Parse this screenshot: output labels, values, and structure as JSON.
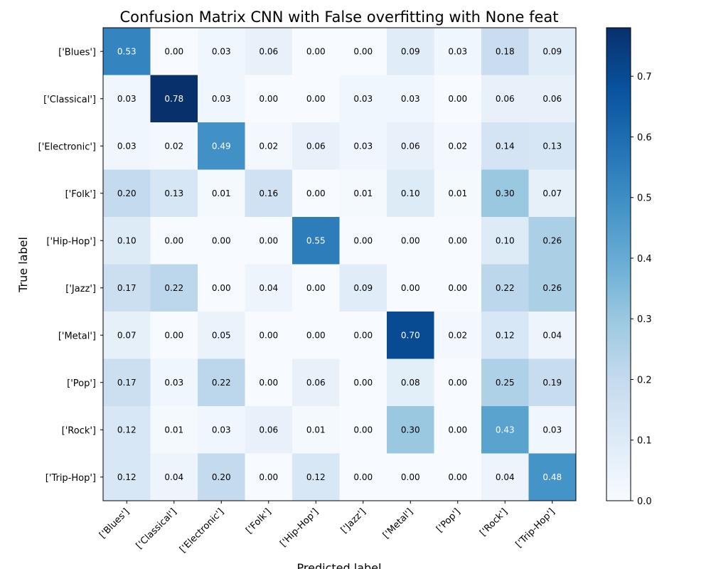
{
  "chart_data": {
    "type": "heatmap",
    "title": "Confusion Matrix CNN with False overfitting with None feat",
    "xlabel": "Predicted label",
    "ylabel": "True label",
    "x_labels": [
      "['Blues']",
      "['Classical']",
      "['Electronic']",
      "['Folk']",
      "['Hip-Hop']",
      "['Jazz']",
      "['Metal']",
      "['Pop']",
      "['Rock']",
      "['Trip-Hop']"
    ],
    "y_labels": [
      "['Blues']",
      "['Classical']",
      "['Electronic']",
      "['Folk']",
      "['Hip-Hop']",
      "['Jazz']",
      "['Metal']",
      "['Pop']",
      "['Rock']",
      "['Trip-Hop']"
    ],
    "values": [
      [
        0.53,
        0.0,
        0.03,
        0.06,
        0.0,
        0.0,
        0.09,
        0.03,
        0.18,
        0.09
      ],
      [
        0.03,
        0.78,
        0.03,
        0.0,
        0.0,
        0.03,
        0.03,
        0.0,
        0.06,
        0.06
      ],
      [
        0.03,
        0.02,
        0.49,
        0.02,
        0.06,
        0.03,
        0.06,
        0.02,
        0.14,
        0.13
      ],
      [
        0.2,
        0.13,
        0.01,
        0.16,
        0.0,
        0.01,
        0.1,
        0.01,
        0.3,
        0.07
      ],
      [
        0.1,
        0.0,
        0.0,
        0.0,
        0.55,
        0.0,
        0.0,
        0.0,
        0.1,
        0.26
      ],
      [
        0.17,
        0.22,
        0.0,
        0.04,
        0.0,
        0.09,
        0.0,
        0.0,
        0.22,
        0.26
      ],
      [
        0.07,
        0.0,
        0.05,
        0.0,
        0.0,
        0.0,
        0.7,
        0.02,
        0.12,
        0.04
      ],
      [
        0.17,
        0.03,
        0.22,
        0.0,
        0.06,
        0.0,
        0.08,
        0.0,
        0.25,
        0.19
      ],
      [
        0.12,
        0.01,
        0.03,
        0.06,
        0.01,
        0.0,
        0.3,
        0.0,
        0.43,
        0.03
      ],
      [
        0.12,
        0.04,
        0.2,
        0.0,
        0.12,
        0.0,
        0.0,
        0.0,
        0.04,
        0.48
      ]
    ],
    "colorbar": {
      "min": 0.0,
      "max": 0.78,
      "ticks": [
        "0.0",
        "0.1",
        "0.2",
        "0.3",
        "0.4",
        "0.5",
        "0.6",
        "0.7"
      ]
    },
    "colormap": "Blues",
    "colormap_stops": [
      "#f7fbff",
      "#deebf7",
      "#c6dbef",
      "#9ecae1",
      "#6baed6",
      "#4292c6",
      "#2171b5",
      "#08519c",
      "#08306b"
    ],
    "text_dark": "#000000",
    "text_light": "#ffffff",
    "grid": false
  }
}
